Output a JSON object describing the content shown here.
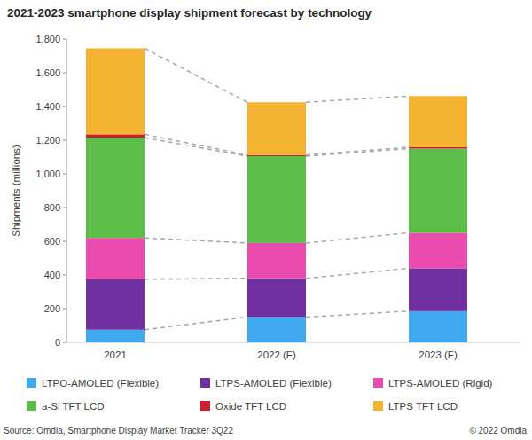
{
  "chart_data": {
    "type": "bar",
    "stacked": true,
    "title": "2021-2023 smartphone display shipment forecast by technology",
    "y_label": "Shipments (millions)",
    "annotations": [
      "Source: Omdia, Smartphone Display Market Tracker 3Q22",
      "© 2022 Omdia"
    ],
    "categories": [
      "2021",
      "2022 (F)",
      "2023 (F)"
    ],
    "series": [
      {
        "name": "LTPO-AMOLED (Flexible)",
        "color": "#41a9f0",
        "values": [
          75,
          150,
          185
        ]
      },
      {
        "name": "LTPS-AMOLED (Flexible)",
        "color": "#7030a0",
        "values": [
          300,
          230,
          255
        ]
      },
      {
        "name": "LTPS-AMOLED (Rigid)",
        "color": "#e94cad",
        "values": [
          245,
          210,
          210
        ]
      },
      {
        "name": "a-Si TFT LCD",
        "color": "#5cbd48",
        "values": [
          595,
          515,
          500
        ]
      },
      {
        "name": "Oxide TFT LCD",
        "color": "#d0202f",
        "values": [
          20,
          7,
          8
        ]
      },
      {
        "name": "LTPS TFT LCD",
        "color": "#f4b330",
        "values": [
          510,
          313,
          304
        ]
      }
    ],
    "ylim": [
      0,
      1800
    ],
    "yticks": [
      0,
      200,
      400,
      600,
      800,
      {
        "value": 1000,
        "label": "1,000"
      },
      {
        "value": 1200,
        "label": "1,200"
      },
      {
        "value": 1400,
        "label": "1,400"
      },
      {
        "value": 1600,
        "label": "1,600"
      },
      {
        "value": 1800,
        "label": "1,800"
      }
    ],
    "grid": false,
    "legend": "bottom"
  }
}
